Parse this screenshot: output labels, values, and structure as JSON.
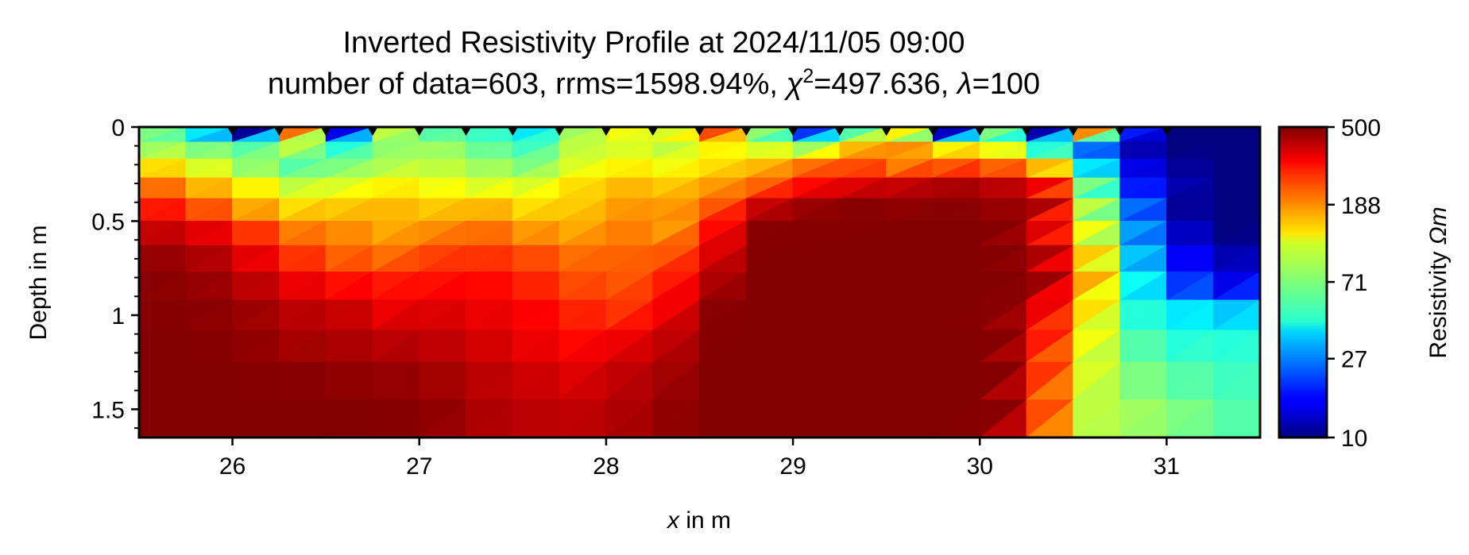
{
  "chart_data": {
    "type": "heatmap",
    "title": "Inverted Resistivity Profile at 2024/11/05 09:00",
    "subtitle": {
      "prefix": "number of data=603, rrms=1598.94%, ",
      "chi_symbol": "χ",
      "chi_exponent": "2",
      "chi_value": "=497.636, ",
      "lambda_symbol": "λ",
      "lambda_value": "=100"
    },
    "xlabel": {
      "symbol": "x",
      "text": " in m"
    },
    "ylabel": "Depth in m",
    "xlim": [
      25.5,
      31.5
    ],
    "ylim": [
      0,
      1.65
    ],
    "x_ticks": [
      26,
      27,
      28,
      29,
      30,
      31
    ],
    "x_tick_labels": [
      "26",
      "27",
      "28",
      "29",
      "30",
      "31"
    ],
    "y_ticks": [
      0,
      0.5,
      1,
      1.5
    ],
    "y_tick_labels": [
      "0",
      "0.5",
      "1",
      "1.5"
    ],
    "y_minor_ticks": [
      0.1,
      0.2,
      0.3,
      0.4,
      0.6,
      0.7,
      0.8,
      0.9,
      1.1,
      1.2,
      1.3,
      1.4,
      1.6
    ],
    "colorbar": {
      "label": "Resistivity Ωm",
      "label_prefix": "Resistivity ",
      "label_unit": "Ωm",
      "scale": "log",
      "cmap": "jet",
      "range": [
        10,
        500
      ],
      "tick_values": [
        10,
        27,
        71,
        188,
        500
      ],
      "tick_labels": [
        "10",
        "27",
        "71",
        "188",
        "500"
      ]
    },
    "electrodes_x": [
      26.0,
      26.25,
      26.5,
      26.75,
      27.0,
      27.25,
      27.5,
      27.75,
      28.0,
      28.25,
      28.5,
      28.75,
      29.0,
      29.25,
      29.5,
      29.75,
      30.0,
      30.25,
      30.5,
      30.75,
      31.0
    ],
    "model": {
      "x_nodes": [
        25.5,
        25.75,
        26.0,
        26.25,
        26.5,
        26.75,
        27.0,
        27.25,
        27.5,
        27.75,
        28.0,
        28.25,
        28.5,
        28.75,
        29.0,
        29.25,
        29.5,
        29.75,
        30.0,
        30.25,
        30.5,
        30.75,
        31.0,
        31.25,
        31.5
      ],
      "z_nodes": [
        0,
        0.08,
        0.17,
        0.27,
        0.38,
        0.5,
        0.63,
        0.77,
        0.92,
        1.08,
        1.25,
        1.45,
        1.65
      ],
      "resistivity_ohm_m": [
        [
          70,
          40,
          11,
          200,
          15,
          90,
          60,
          55,
          40,
          80,
          110,
          100,
          230,
          75,
          20,
          60,
          120,
          13,
          70,
          12,
          180,
          18,
          10,
          10
        ],
        [
          80,
          70,
          60,
          90,
          50,
          75,
          80,
          65,
          55,
          90,
          100,
          90,
          120,
          100,
          80,
          150,
          180,
          120,
          110,
          50,
          25,
          12,
          10,
          10
        ],
        [
          130,
          100,
          75,
          60,
          70,
          85,
          90,
          80,
          70,
          100,
          120,
          110,
          130,
          150,
          200,
          230,
          190,
          220,
          210,
          150,
          40,
          15,
          11,
          10
        ],
        [
          200,
          150,
          120,
          90,
          100,
          120,
          110,
          100,
          100,
          130,
          150,
          140,
          170,
          210,
          300,
          350,
          380,
          420,
          400,
          330,
          70,
          18,
          12,
          10
        ],
        [
          280,
          220,
          160,
          130,
          140,
          150,
          140,
          150,
          130,
          140,
          170,
          170,
          220,
          380,
          450,
          480,
          470,
          480,
          460,
          420,
          90,
          25,
          11,
          10
        ],
        [
          380,
          340,
          250,
          190,
          180,
          160,
          180,
          200,
          170,
          160,
          190,
          170,
          300,
          480,
          490,
          490,
          495,
          495,
          485,
          350,
          110,
          30,
          13,
          10
        ],
        [
          460,
          420,
          340,
          250,
          210,
          200,
          240,
          250,
          230,
          200,
          210,
          220,
          350,
          490,
          495,
          495,
          495,
          495,
          490,
          420,
          140,
          35,
          16,
          12
        ],
        [
          480,
          460,
          400,
          330,
          290,
          280,
          290,
          300,
          270,
          230,
          220,
          280,
          420,
          495,
          495,
          495,
          495,
          495,
          495,
          450,
          160,
          45,
          20,
          15
        ],
        [
          490,
          480,
          450,
          400,
          380,
          330,
          350,
          330,
          310,
          270,
          250,
          320,
          480,
          495,
          495,
          495,
          495,
          495,
          480,
          330,
          130,
          50,
          40,
          35
        ],
        [
          495,
          490,
          470,
          430,
          420,
          400,
          390,
          360,
          330,
          300,
          330,
          390,
          490,
          495,
          495,
          495,
          495,
          495,
          490,
          280,
          110,
          60,
          50,
          50
        ],
        [
          495,
          495,
          490,
          480,
          470,
          460,
          440,
          400,
          370,
          350,
          390,
          440,
          495,
          495,
          495,
          495,
          495,
          495,
          490,
          250,
          100,
          70,
          60,
          55
        ],
        [
          495,
          495,
          495,
          495,
          495,
          490,
          470,
          420,
          400,
          390,
          420,
          470,
          495,
          495,
          495,
          495,
          495,
          495,
          480,
          230,
          90,
          80,
          70,
          60
        ]
      ]
    }
  }
}
